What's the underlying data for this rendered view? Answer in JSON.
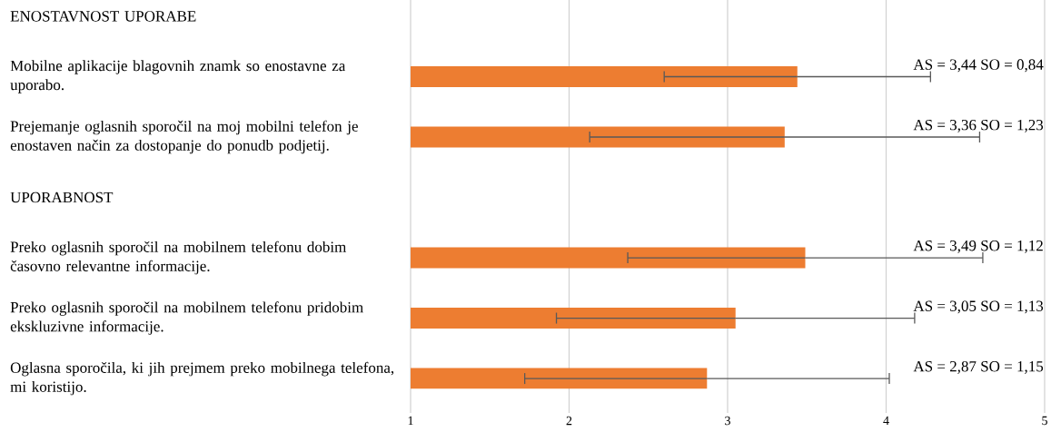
{
  "chart_data": {
    "type": "bar",
    "orientation": "horizontal",
    "categories": [
      "ENOSTAVNOST UPORABE",
      "Mobilne aplikacije blagovnih znamk so enostavne za uporabo.",
      "Prejemanje oglasnih sporočil na moj mobilni telefon je enostaven način za dostopanje do ponudb podjetij.",
      "UPORABNOST",
      "Preko oglasnih sporočil na mobilnem telefonu dobim časovno relevantne informacije.",
      "Preko oglasnih sporočil na mobilnem telefonu pridobim ekskluzivne informacije.",
      "Oglasna sporočila, ki jih prejmem preko mobilnega telefona, mi koristijo."
    ],
    "values": [
      null,
      3.44,
      3.36,
      null,
      3.49,
      3.05,
      2.87
    ],
    "errors": [
      null,
      0.84,
      1.23,
      null,
      1.12,
      1.13,
      1.15
    ],
    "value_labels": [
      null,
      "AS = 3,44  SO = 0,84",
      "AS = 3,36  SO = 1,23",
      null,
      "AS = 3,49  SO = 1,12",
      "AS = 3,05  SO = 1,13",
      "AS = 2,87  SO = 1,15"
    ],
    "color": "#ed7d31",
    "xlim": [
      1,
      5
    ],
    "xticks": [
      1,
      2,
      3,
      4,
      5
    ],
    "grid": "x"
  }
}
